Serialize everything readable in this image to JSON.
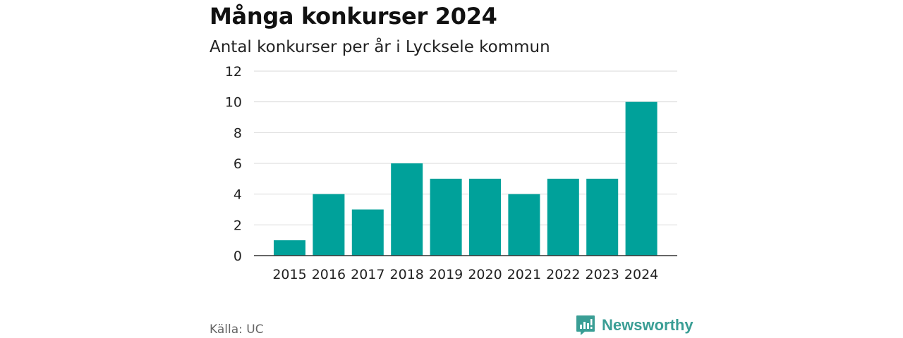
{
  "chart_data": {
    "type": "bar",
    "title": "Många konkurser 2024",
    "subtitle": "Antal konkurser per år i Lycksele kommun",
    "categories": [
      "2015",
      "2016",
      "2017",
      "2018",
      "2019",
      "2020",
      "2021",
      "2022",
      "2023",
      "2024"
    ],
    "values": [
      1,
      4,
      3,
      6,
      5,
      5,
      4,
      5,
      5,
      10
    ],
    "ylim": [
      0,
      12
    ],
    "yticks": [
      "0",
      "2",
      "4",
      "6",
      "8",
      "10",
      "12"
    ],
    "grid": true,
    "bar_color": "#00a19a"
  },
  "footer": {
    "source": "Källa: UC",
    "brand": "Newsworthy",
    "brand_icon": "newsworthy-logo-icon",
    "brand_color": "#3a9e95"
  }
}
